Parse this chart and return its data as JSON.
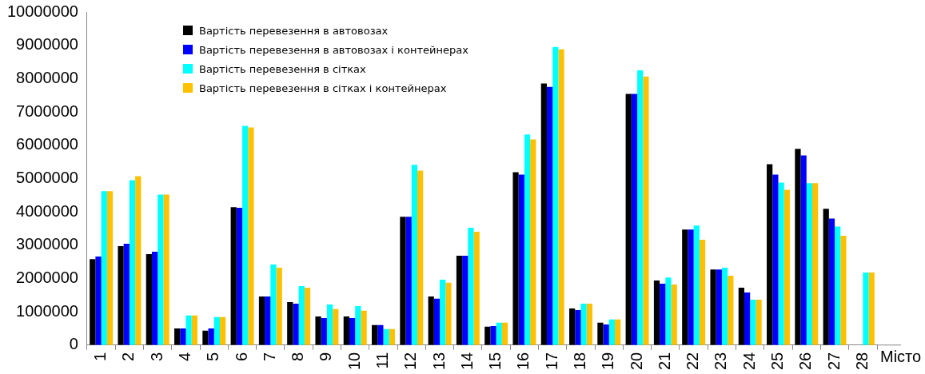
{
  "chart_data": {
    "type": "bar",
    "xlabel": "Місто",
    "categories": [
      "1",
      "2",
      "3",
      "4",
      "5",
      "6",
      "7",
      "8",
      "9",
      "10",
      "11",
      "12",
      "13",
      "14",
      "15",
      "16",
      "17",
      "18",
      "19",
      "20",
      "21",
      "22",
      "23",
      "24",
      "25",
      "26",
      "27",
      "28"
    ],
    "series": [
      {
        "name": "Вартість перевезення в автовозах",
        "color": "#000000",
        "values": [
          2580000,
          2970000,
          2730000,
          500000,
          430000,
          4140000,
          1460000,
          1290000,
          860000,
          860000,
          600000,
          3850000,
          1460000,
          2680000,
          550000,
          5190000,
          7850000,
          1100000,
          670000,
          7540000,
          1940000,
          3470000,
          2270000,
          1720000,
          5430000,
          5890000,
          4090000,
          null
        ]
      },
      {
        "name": "Вартість перевезення в автовозах і контейнерах",
        "color": "#0000ff",
        "values": [
          2660000,
          3040000,
          2800000,
          500000,
          500000,
          4120000,
          1460000,
          1240000,
          810000,
          810000,
          600000,
          3850000,
          1390000,
          2680000,
          570000,
          5120000,
          7750000,
          1050000,
          620000,
          7540000,
          1840000,
          3470000,
          2270000,
          1580000,
          5120000,
          5690000,
          3800000,
          null
        ]
      },
      {
        "name": "Вартість перевезення в сітках",
        "color": "#00ffff",
        "values": [
          4620000,
          4950000,
          4520000,
          890000,
          840000,
          6580000,
          2420000,
          1770000,
          1220000,
          1170000,
          480000,
          5410000,
          1960000,
          3520000,
          670000,
          6320000,
          8950000,
          1240000,
          770000,
          8250000,
          2030000,
          3590000,
          2320000,
          1360000,
          4880000,
          4860000,
          3560000,
          2180000
        ]
      },
      {
        "name": "Вартість перевезення в сітках і контейнерах",
        "color": "#ffc000",
        "values": [
          4620000,
          5070000,
          4520000,
          890000,
          840000,
          6530000,
          2320000,
          1720000,
          1080000,
          1030000,
          480000,
          5240000,
          1870000,
          3400000,
          670000,
          6170000,
          8880000,
          1240000,
          770000,
          8060000,
          1820000,
          3160000,
          2080000,
          1360000,
          4660000,
          4860000,
          3280000,
          2180000
        ]
      }
    ],
    "ylim": [
      0,
      10000000
    ],
    "yticks": [
      0,
      1000000,
      2000000,
      3000000,
      4000000,
      5000000,
      6000000,
      7000000,
      8000000,
      9000000,
      10000000
    ],
    "grid": false,
    "legend": "top left"
  }
}
